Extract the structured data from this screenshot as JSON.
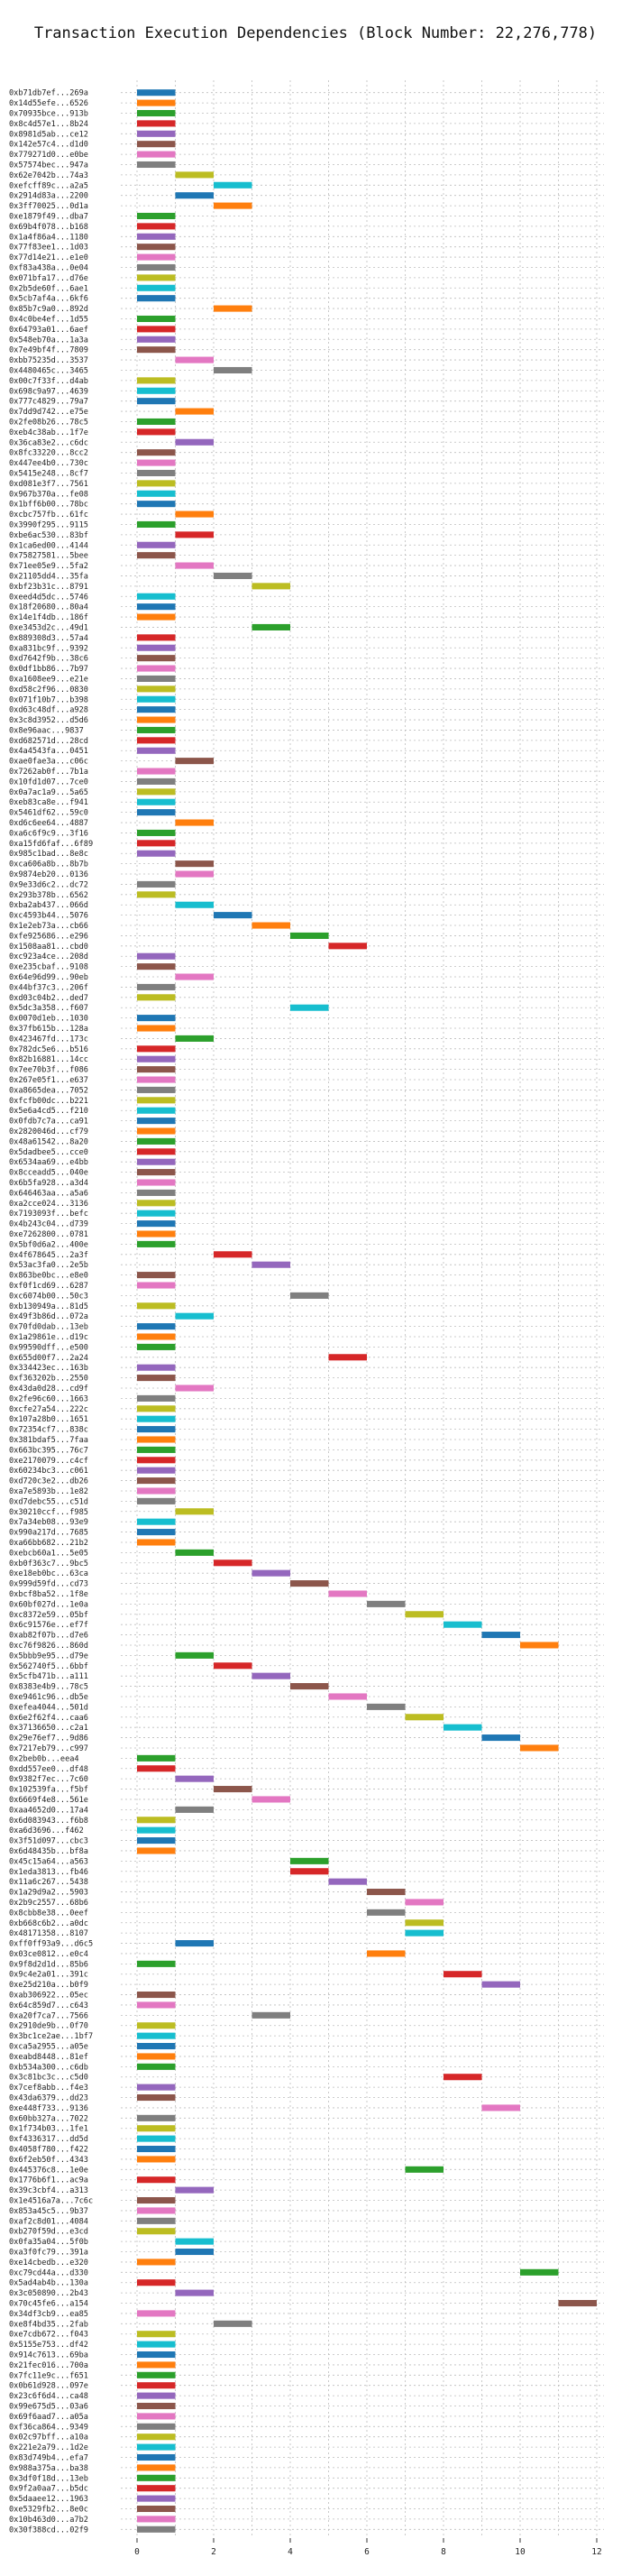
{
  "chart_data": {
    "type": "bar",
    "orientation": "horizontal",
    "title": "Transaction Execution Dependencies (Block Number: 22,276,778)",
    "xlabel": "",
    "ylabel": "",
    "xlim": [
      0,
      12.5
    ],
    "xticks": [
      0,
      2,
      4,
      6,
      8,
      10,
      12
    ],
    "grid": true,
    "colors": [
      "#1f77b4",
      "#ff7f0e",
      "#2ca02c",
      "#d62728",
      "#9467bd",
      "#8c564b",
      "#e377c2",
      "#7f7f7f",
      "#bcbd22",
      "#17becf"
    ],
    "transactions": [
      {
        "hash": "0xb71db7ef...269a",
        "start": 0
      },
      {
        "hash": "0x14d55efe...6526",
        "start": 0
      },
      {
        "hash": "0x70935bce...913b",
        "start": 0
      },
      {
        "hash": "0x8c4d57e1...8b24",
        "start": 0
      },
      {
        "hash": "0x8981d5ab...ce12",
        "start": 0
      },
      {
        "hash": "0x142e57c4...d1d0",
        "start": 0
      },
      {
        "hash": "0x779271d0...e0be",
        "start": 0
      },
      {
        "hash": "0x57574bec...947a",
        "start": 0
      },
      {
        "hash": "0x62e7042b...74a3",
        "start": 1
      },
      {
        "hash": "0xefcff89c...a2a5",
        "start": 2
      },
      {
        "hash": "0x2914d83a...2200",
        "start": 1
      },
      {
        "hash": "0x3ff70025...0d1a",
        "start": 2
      },
      {
        "hash": "0xe1879f49...dba7",
        "start": 0
      },
      {
        "hash": "0x69b4f078...b168",
        "start": 0
      },
      {
        "hash": "0x1a4f86a4...1180",
        "start": 0
      },
      {
        "hash": "0x77f83ee1...1d03",
        "start": 0
      },
      {
        "hash": "0x77d14e21...e1e0",
        "start": 0
      },
      {
        "hash": "0xf83a438a...0e04",
        "start": 0
      },
      {
        "hash": "0x071bfa17...d76e",
        "start": 0
      },
      {
        "hash": "0x2b5de60f...6ae1",
        "start": 0
      },
      {
        "hash": "0x5cb7af4a...6kf6",
        "start": 0
      },
      {
        "hash": "0x85b7c9a0...892d",
        "start": 2
      },
      {
        "hash": "0x4c0be4ef...1d55",
        "start": 0
      },
      {
        "hash": "0x64793a01...6aef",
        "start": 0
      },
      {
        "hash": "0x548eb70a...1a3a",
        "start": 0
      },
      {
        "hash": "0x7e49bf4f...7809",
        "start": 0
      },
      {
        "hash": "0xbb75235d...3537",
        "start": 1
      },
      {
        "hash": "0x4480465c...3465",
        "start": 2
      },
      {
        "hash": "0x00c7f33f...d4ab",
        "start": 0
      },
      {
        "hash": "0x698c9a97...4639",
        "start": 0
      },
      {
        "hash": "0x777c4829...79a7",
        "start": 0
      },
      {
        "hash": "0x7dd9d742...e75e",
        "start": 1
      },
      {
        "hash": "0x2fe08b26...78c5",
        "start": 0
      },
      {
        "hash": "0xeb4c38ab...1f7e",
        "start": 0
      },
      {
        "hash": "0x36ca83e2...c6dc",
        "start": 1
      },
      {
        "hash": "0x8fc33220...8cc2",
        "start": 0
      },
      {
        "hash": "0x447ee4b0...730c",
        "start": 0
      },
      {
        "hash": "0x5415e248...8cf7",
        "start": 0
      },
      {
        "hash": "0xd081e3f7...7561",
        "start": 0
      },
      {
        "hash": "0x967b370a...fe08",
        "start": 0
      },
      {
        "hash": "0x1bff6b00...78bc",
        "start": 0
      },
      {
        "hash": "0xcbc757fb...61fc",
        "start": 1
      },
      {
        "hash": "0x3990f295...9115",
        "start": 0
      },
      {
        "hash": "0xbe6ac530...83bf",
        "start": 1
      },
      {
        "hash": "0x1ca6ed00...4144",
        "start": 0
      },
      {
        "hash": "0x75827581...5bee",
        "start": 0
      },
      {
        "hash": "0x71ee05e9...5fa2",
        "start": 1
      },
      {
        "hash": "0x21105dd4...35fa",
        "start": 2
      },
      {
        "hash": "0xbf23b31c...8791",
        "start": 3
      },
      {
        "hash": "0xeed4d5dc...5746",
        "start": 0
      },
      {
        "hash": "0x18f20680...80a4",
        "start": 0
      },
      {
        "hash": "0x14e1f4db...186f",
        "start": 0
      },
      {
        "hash": "0xe3453d2c...49d1",
        "start": 3
      },
      {
        "hash": "0x889308d3...57a4",
        "start": 0
      },
      {
        "hash": "0xa831bc9f...9392",
        "start": 0
      },
      {
        "hash": "0xd7642f9b...38c6",
        "start": 0
      },
      {
        "hash": "0x0df1bb86...7b97",
        "start": 0
      },
      {
        "hash": "0xa1608ee9...e21e",
        "start": 0
      },
      {
        "hash": "0xd58c2f96...0830",
        "start": 0
      },
      {
        "hash": "0x071f10b7...b398",
        "start": 0
      },
      {
        "hash": "0xd63c48df...a928",
        "start": 0
      },
      {
        "hash": "0x3c8d3952...d5d6",
        "start": 0
      },
      {
        "hash": "0x8e96aac...9837",
        "start": 0
      },
      {
        "hash": "0xd682571d...28cd",
        "start": 0
      },
      {
        "hash": "0x4a4543fa...0451",
        "start": 0
      },
      {
        "hash": "0xae0fae3a...c06c",
        "start": 1
      },
      {
        "hash": "0x7262ab0f...7b1a",
        "start": 0
      },
      {
        "hash": "0x10fd1d07...7ce0",
        "start": 0
      },
      {
        "hash": "0x0a7ac1a9...5a65",
        "start": 0
      },
      {
        "hash": "0xeb83ca8e...f941",
        "start": 0
      },
      {
        "hash": "0x5461df62...59c0",
        "start": 0
      },
      {
        "hash": "0xd6c6ee64...4887",
        "start": 1
      },
      {
        "hash": "0xa6c6f9c9...3f16",
        "start": 0
      },
      {
        "hash": "0xa15fd6faf...6f89",
        "start": 0
      },
      {
        "hash": "0x985c1bad...8e8c",
        "start": 0
      },
      {
        "hash": "0xca606a8b...8b7b",
        "start": 1
      },
      {
        "hash": "0x9874eb20...0136",
        "start": 1
      },
      {
        "hash": "0x9e33d6c2...dc72",
        "start": 0
      },
      {
        "hash": "0x293b378b...6562",
        "start": 0
      },
      {
        "hash": "0xba2ab437...066d",
        "start": 1
      },
      {
        "hash": "0xc4593b44...5076",
        "start": 2
      },
      {
        "hash": "0x1e2eb73a...cb66",
        "start": 3
      },
      {
        "hash": "0xfe925686...e296",
        "start": 4
      },
      {
        "hash": "0x1508aa81...cbd0",
        "start": 5
      },
      {
        "hash": "0xc923a4ce...208d",
        "start": 0
      },
      {
        "hash": "0xe235cbaf...9108",
        "start": 0
      },
      {
        "hash": "0x64e96d99...90eb",
        "start": 1
      },
      {
        "hash": "0x44bf37c3...206f",
        "start": 0
      },
      {
        "hash": "0xd03c04b2...ded7",
        "start": 0
      },
      {
        "hash": "0x5dc3a358...f607",
        "start": 4
      },
      {
        "hash": "0x0070d1eb...1030",
        "start": 0
      },
      {
        "hash": "0x37fb615b...128a",
        "start": 0
      },
      {
        "hash": "0x423467fd...173c",
        "start": 1
      },
      {
        "hash": "0x782dc5e6...b516",
        "start": 0
      },
      {
        "hash": "0x82b16881...14cc",
        "start": 0
      },
      {
        "hash": "0x7ee70b3f...f086",
        "start": 0
      },
      {
        "hash": "0x267e05f1...e637",
        "start": 0
      },
      {
        "hash": "0xa8665dea...7052",
        "start": 0
      },
      {
        "hash": "0xfcfb00dc...b221",
        "start": 0
      },
      {
        "hash": "0x5e6a4cd5...f210",
        "start": 0
      },
      {
        "hash": "0x0fdb7c7a...ca91",
        "start": 0
      },
      {
        "hash": "0x2820046d...cf79",
        "start": 0
      },
      {
        "hash": "0x48a61542...8a20",
        "start": 0
      },
      {
        "hash": "0x5dadbee5...cce0",
        "start": 0
      },
      {
        "hash": "0x6534aa69...e4bb",
        "start": 0
      },
      {
        "hash": "0x8cceadd5...040e",
        "start": 0
      },
      {
        "hash": "0x6b5fa928...a3d4",
        "start": 0
      },
      {
        "hash": "0x646463aa...a5a6",
        "start": 0
      },
      {
        "hash": "0xa2cce024...3136",
        "start": 0
      },
      {
        "hash": "0x7193093f...befc",
        "start": 0
      },
      {
        "hash": "0x4b243c04...d739",
        "start": 0
      },
      {
        "hash": "0xe7262800...0781",
        "start": 0
      },
      {
        "hash": "0x5bf0d6a2...400e",
        "start": 0
      },
      {
        "hash": "0x4f678645...2a3f",
        "start": 2
      },
      {
        "hash": "0x53ac3fa0...2e5b",
        "start": 3
      },
      {
        "hash": "0x863be0bc...e8e0",
        "start": 0
      },
      {
        "hash": "0xf0f1cd69...6287",
        "start": 0
      },
      {
        "hash": "0xc6074b00...50c3",
        "start": 4
      },
      {
        "hash": "0xb130949a...81d5",
        "start": 0
      },
      {
        "hash": "0x49f3b86d...072a",
        "start": 1
      },
      {
        "hash": "0x70fd0dab...13eb",
        "start": 0
      },
      {
        "hash": "0x1a29861e...d19c",
        "start": 0
      },
      {
        "hash": "0x99590dff...e500",
        "start": 0
      },
      {
        "hash": "0x655d00f7...2a24",
        "start": 5
      },
      {
        "hash": "0x334423ec...163b",
        "start": 0
      },
      {
        "hash": "0xf363202b...2550",
        "start": 0
      },
      {
        "hash": "0x43da0d28...cd9f",
        "start": 1
      },
      {
        "hash": "0x2fe96c60...1663",
        "start": 0
      },
      {
        "hash": "0xcfe27a54...222c",
        "start": 0
      },
      {
        "hash": "0x107a28b0...1651",
        "start": 0
      },
      {
        "hash": "0x72354cf7...838c",
        "start": 0
      },
      {
        "hash": "0x381bdaf5...7faa",
        "start": 0
      },
      {
        "hash": "0x663bc395...76c7",
        "start": 0
      },
      {
        "hash": "0xe2170079...c4cf",
        "start": 0
      },
      {
        "hash": "0x60234bc3...c061",
        "start": 0
      },
      {
        "hash": "0xd720c3e2...db26",
        "start": 0
      },
      {
        "hash": "0xa7e5893b...1e82",
        "start": 0
      },
      {
        "hash": "0xd7debc55...c51d",
        "start": 0
      },
      {
        "hash": "0x30210ccf...f985",
        "start": 1
      },
      {
        "hash": "0x7a34eb08...93e9",
        "start": 0
      },
      {
        "hash": "0x990a217d...7685",
        "start": 0
      },
      {
        "hash": "0xa66bb682...21b2",
        "start": 0
      },
      {
        "hash": "0xebcb60a1...5e05",
        "start": 1
      },
      {
        "hash": "0xb0f363c7...9bc5",
        "start": 2
      },
      {
        "hash": "0xe18eb0bc...63ca",
        "start": 3
      },
      {
        "hash": "0x999d59fd...cd73",
        "start": 4
      },
      {
        "hash": "0xbcf8ba52...1f8e",
        "start": 5
      },
      {
        "hash": "0x60bf027d...1e0a",
        "start": 6
      },
      {
        "hash": "0xc8372e59...05bf",
        "start": 7
      },
      {
        "hash": "0x6c91576e...ef7f",
        "start": 8
      },
      {
        "hash": "0xab82f07b...d7e6",
        "start": 9
      },
      {
        "hash": "0xc76f9826...860d",
        "start": 10
      },
      {
        "hash": "0x5bbb9e95...d79e",
        "start": 1
      },
      {
        "hash": "0x562740f5...6bbf",
        "start": 2
      },
      {
        "hash": "0x5cfb471b...a111",
        "start": 3
      },
      {
        "hash": "0x8383e4b9...78c5",
        "start": 4
      },
      {
        "hash": "0xe9461c96...db5e",
        "start": 5
      },
      {
        "hash": "0xefea4044...501d",
        "start": 6
      },
      {
        "hash": "0x6e2f62f4...caa6",
        "start": 7
      },
      {
        "hash": "0x37136650...c2a1",
        "start": 8
      },
      {
        "hash": "0x29e76ef7...9d86",
        "start": 9
      },
      {
        "hash": "0x7217eb79...c997",
        "start": 10
      },
      {
        "hash": "0x2beb0b...eea4",
        "start": 0
      },
      {
        "hash": "0xdd557ee0...df48",
        "start": 0
      },
      {
        "hash": "0x9382f7ec...7c60",
        "start": 1
      },
      {
        "hash": "0x102539fa...f5bf",
        "start": 2
      },
      {
        "hash": "0x6669f4e8...561e",
        "start": 3
      },
      {
        "hash": "0xaa4652d0...17a4",
        "start": 1
      },
      {
        "hash": "0x6d083943...f6b8",
        "start": 0
      },
      {
        "hash": "0xa6d3696...f462",
        "start": 0
      },
      {
        "hash": "0x3f51d097...cbc3",
        "start": 0
      },
      {
        "hash": "0x6d48435b...bf8a",
        "start": 0
      },
      {
        "hash": "0x45c15a64...a563",
        "start": 4
      },
      {
        "hash": "0x1eda3813...fb46",
        "start": 4
      },
      {
        "hash": "0x11a6c267...5438",
        "start": 5
      },
      {
        "hash": "0x1a29d9a2...5903",
        "start": 6
      },
      {
        "hash": "0x2b9c2557...68b6",
        "start": 7
      },
      {
        "hash": "0x8cbb8e38...0eef",
        "start": 6
      },
      {
        "hash": "0xb668c6b2...a0dc",
        "start": 7
      },
      {
        "hash": "0x48171358...8107",
        "start": 7
      },
      {
        "hash": "0xff0ff93a9...d6c5",
        "start": 1
      },
      {
        "hash": "0x03ce0812...e0c4",
        "start": 6
      },
      {
        "hash": "0x9f8d2d1d...85b6",
        "start": 0
      },
      {
        "hash": "0x9c4e2a01...391c",
        "start": 8
      },
      {
        "hash": "0xe25d210a...b0f9",
        "start": 9
      },
      {
        "hash": "0xab306922...05ec",
        "start": 0
      },
      {
        "hash": "0x64c859d7...c643",
        "start": 0
      },
      {
        "hash": "0xa20f7ca7...7566",
        "start": 3
      },
      {
        "hash": "0x2910de9b...0f70",
        "start": 0
      },
      {
        "hash": "0x3bc1ce2ae...1bf7",
        "start": 0
      },
      {
        "hash": "0xca5a2955...a05e",
        "start": 0
      },
      {
        "hash": "0xeabd8448...81ef",
        "start": 0
      },
      {
        "hash": "0xb534a300...c6db",
        "start": 0
      },
      {
        "hash": "0x3c81bc3c...c5d0",
        "start": 8
      },
      {
        "hash": "0x7cef8abb...f4e3",
        "start": 0
      },
      {
        "hash": "0x43da6379...dd23",
        "start": 0
      },
      {
        "hash": "0xe448f733...9136",
        "start": 9
      },
      {
        "hash": "0x60bb327a...7022",
        "start": 0
      },
      {
        "hash": "0x1f734b03...1fe1",
        "start": 0
      },
      {
        "hash": "0xf4336317...dd5d",
        "start": 0
      },
      {
        "hash": "0x4058f780...f422",
        "start": 0
      },
      {
        "hash": "0x6f2eb50f...4343",
        "start": 0
      },
      {
        "hash": "0x445376c8...1e0e",
        "start": 7
      },
      {
        "hash": "0x1776b6f1...ac9a",
        "start": 0
      },
      {
        "hash": "0x39c3cbf4...a313",
        "start": 1
      },
      {
        "hash": "0x1e4516a7a...7c6c",
        "start": 0
      },
      {
        "hash": "0x853a45c5...9b37",
        "start": 0
      },
      {
        "hash": "0xaf2c8d01...4084",
        "start": 0
      },
      {
        "hash": "0xb270f59d...e3cd",
        "start": 0
      },
      {
        "hash": "0x0fa35a04...5f0b",
        "start": 1
      },
      {
        "hash": "0xa3f0fc79...391a",
        "start": 1
      },
      {
        "hash": "0xe14cbedb...e320",
        "start": 0
      },
      {
        "hash": "0xc79cd44a...d330",
        "start": 10
      },
      {
        "hash": "0x5ad4ab4b...130a",
        "start": 0
      },
      {
        "hash": "0x3c050890...2b43",
        "start": 1
      },
      {
        "hash": "0x70c45fe6...a154",
        "start": 11
      },
      {
        "hash": "0x34df3cb9...ea85",
        "start": 0
      },
      {
        "hash": "0xe8f4bd35...2fab",
        "start": 2
      },
      {
        "hash": "0xe7cdb672...f043",
        "start": 0
      },
      {
        "hash": "0x5155e753...df42",
        "start": 0
      },
      {
        "hash": "0x914c7613...69ba",
        "start": 0
      },
      {
        "hash": "0x21fec016...700a",
        "start": 0
      },
      {
        "hash": "0x7fc11e9c...f651",
        "start": 0
      },
      {
        "hash": "0x0b61d928...097e",
        "start": 0
      },
      {
        "hash": "0x23c6f6d4...ca48",
        "start": 0
      },
      {
        "hash": "0x99e675d5...03a6",
        "start": 0
      },
      {
        "hash": "0x69f6aad7...a05a",
        "start": 0
      },
      {
        "hash": "0xf36ca864...9349",
        "start": 0
      },
      {
        "hash": "0x02c97bff...a10a",
        "start": 0
      },
      {
        "hash": "0x221e2a79...1d2e",
        "start": 0
      },
      {
        "hash": "0x83d749b4...efa7",
        "start": 0
      },
      {
        "hash": "0x988a375a...ba38",
        "start": 0
      },
      {
        "hash": "0x3df0f18d...13eb",
        "start": 0
      },
      {
        "hash": "0x9f2a0aa7...b5dc",
        "start": 0
      },
      {
        "hash": "0x5daaee12...1963",
        "start": 0
      },
      {
        "hash": "0xe5329fb2...8e0c",
        "start": 0
      },
      {
        "hash": "0x10b463d0...a7b2",
        "start": 0
      },
      {
        "hash": "0x30f388cd...02f9",
        "start": 0
      }
    ]
  }
}
